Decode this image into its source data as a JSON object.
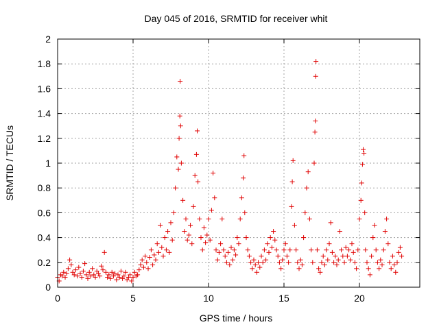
{
  "chart_data": {
    "type": "scatter",
    "title": "Day 045 of 2016, SRMTID for receiver whit",
    "xlabel": "GPS time / hours",
    "ylabel": "SRMTID / TECUs",
    "xlim": [
      0,
      24
    ],
    "ylim": [
      0,
      2
    ],
    "xticks": [
      0,
      5,
      10,
      15,
      20
    ],
    "xtick_labels": [
      "0",
      "5",
      "10",
      "15",
      "20"
    ],
    "yticks": [
      0,
      0.2,
      0.4,
      0.6,
      0.8,
      1,
      1.2,
      1.4,
      1.6,
      1.8,
      2
    ],
    "ytick_labels": [
      "0",
      "0.2",
      "0.4",
      "0.6",
      "0.8",
      "1",
      "1.2",
      "1.4",
      "1.6",
      "1.8",
      "2"
    ],
    "grid": true,
    "marker": "+",
    "color": "#e00000",
    "series": [
      {
        "name": "whit",
        "points": [
          [
            0.0,
            0.08
          ],
          [
            0.1,
            0.05
          ],
          [
            0.2,
            0.1
          ],
          [
            0.3,
            0.09
          ],
          [
            0.4,
            0.12
          ],
          [
            0.5,
            0.08
          ],
          [
            0.6,
            0.11
          ],
          [
            0.7,
            0.15
          ],
          [
            0.8,
            0.22
          ],
          [
            0.9,
            0.18
          ],
          [
            1.0,
            0.12
          ],
          [
            1.1,
            0.1
          ],
          [
            1.2,
            0.14
          ],
          [
            1.3,
            0.09
          ],
          [
            1.4,
            0.16
          ],
          [
            1.5,
            0.11
          ],
          [
            1.6,
            0.08
          ],
          [
            1.7,
            0.13
          ],
          [
            1.8,
            0.19
          ],
          [
            1.9,
            0.1
          ],
          [
            2.0,
            0.07
          ],
          [
            2.1,
            0.12
          ],
          [
            2.2,
            0.09
          ],
          [
            2.3,
            0.15
          ],
          [
            2.4,
            0.1
          ],
          [
            2.5,
            0.08
          ],
          [
            2.6,
            0.13
          ],
          [
            2.7,
            0.11
          ],
          [
            2.8,
            0.09
          ],
          [
            2.9,
            0.17
          ],
          [
            3.0,
            0.14
          ],
          [
            3.1,
            0.28
          ],
          [
            3.2,
            0.12
          ],
          [
            3.3,
            0.08
          ],
          [
            3.4,
            0.1
          ],
          [
            3.5,
            0.07
          ],
          [
            3.6,
            0.12
          ],
          [
            3.7,
            0.09
          ],
          [
            3.8,
            0.11
          ],
          [
            3.9,
            0.06
          ],
          [
            4.0,
            0.1
          ],
          [
            4.1,
            0.08
          ],
          [
            4.2,
            0.13
          ],
          [
            4.3,
            0.07
          ],
          [
            4.4,
            0.09
          ],
          [
            4.5,
            0.12
          ],
          [
            4.6,
            0.06
          ],
          [
            4.7,
            0.08
          ],
          [
            4.8,
            0.1
          ],
          [
            4.9,
            0.05
          ],
          [
            5.0,
            0.08
          ],
          [
            5.1,
            0.12
          ],
          [
            5.2,
            0.09
          ],
          [
            5.3,
            0.1
          ],
          [
            5.4,
            0.14
          ],
          [
            5.5,
            0.18
          ],
          [
            5.6,
            0.22
          ],
          [
            5.7,
            0.16
          ],
          [
            5.8,
            0.25
          ],
          [
            5.9,
            0.2
          ],
          [
            6.0,
            0.15
          ],
          [
            6.1,
            0.24
          ],
          [
            6.2,
            0.3
          ],
          [
            6.3,
            0.18
          ],
          [
            6.4,
            0.26
          ],
          [
            6.5,
            0.22
          ],
          [
            6.6,
            0.35
          ],
          [
            6.7,
            0.28
          ],
          [
            6.8,
            0.5
          ],
          [
            6.9,
            0.32
          ],
          [
            7.0,
            0.25
          ],
          [
            7.1,
            0.4
          ],
          [
            7.2,
            0.3
          ],
          [
            7.3,
            0.45
          ],
          [
            7.4,
            0.28
          ],
          [
            7.5,
            0.52
          ],
          [
            7.6,
            0.38
          ],
          [
            7.7,
            0.6
          ],
          [
            7.8,
            0.8
          ],
          [
            7.9,
            1.05
          ],
          [
            8.0,
            0.95
          ],
          [
            8.05,
            1.2
          ],
          [
            8.1,
            1.38
          ],
          [
            8.12,
            1.66
          ],
          [
            8.15,
            1.3
          ],
          [
            8.2,
            1.0
          ],
          [
            8.3,
            0.7
          ],
          [
            8.4,
            0.45
          ],
          [
            8.5,
            0.55
          ],
          [
            8.6,
            0.38
          ],
          [
            8.7,
            0.42
          ],
          [
            8.8,
            0.5
          ],
          [
            8.9,
            0.35
          ],
          [
            9.0,
            0.65
          ],
          [
            9.1,
            0.9
          ],
          [
            9.2,
            1.07
          ],
          [
            9.25,
            1.26
          ],
          [
            9.3,
            0.85
          ],
          [
            9.4,
            0.55
          ],
          [
            9.5,
            0.4
          ],
          [
            9.6,
            0.3
          ],
          [
            9.7,
            0.48
          ],
          [
            9.8,
            0.36
          ],
          [
            9.9,
            0.42
          ],
          [
            10.0,
            0.55
          ],
          [
            10.1,
            0.38
          ],
          [
            10.2,
            0.62
          ],
          [
            10.3,
            0.92
          ],
          [
            10.4,
            0.72
          ],
          [
            10.5,
            0.3
          ],
          [
            10.6,
            0.22
          ],
          [
            10.7,
            0.28
          ],
          [
            10.8,
            0.35
          ],
          [
            10.9,
            0.55
          ],
          [
            11.0,
            0.3
          ],
          [
            11.1,
            0.25
          ],
          [
            11.2,
            0.2
          ],
          [
            11.3,
            0.28
          ],
          [
            11.4,
            0.18
          ],
          [
            11.5,
            0.32
          ],
          [
            11.6,
            0.22
          ],
          [
            11.7,
            0.3
          ],
          [
            11.8,
            0.26
          ],
          [
            11.9,
            0.4
          ],
          [
            12.0,
            0.35
          ],
          [
            12.1,
            0.55
          ],
          [
            12.2,
            0.72
          ],
          [
            12.3,
            0.88
          ],
          [
            12.35,
            1.06
          ],
          [
            12.4,
            0.6
          ],
          [
            12.5,
            0.4
          ],
          [
            12.6,
            0.3
          ],
          [
            12.7,
            0.25
          ],
          [
            12.8,
            0.2
          ],
          [
            12.9,
            0.15
          ],
          [
            13.0,
            0.22
          ],
          [
            13.1,
            0.18
          ],
          [
            13.2,
            0.12
          ],
          [
            13.3,
            0.2
          ],
          [
            13.4,
            0.16
          ],
          [
            13.5,
            0.25
          ],
          [
            13.6,
            0.2
          ],
          [
            13.7,
            0.3
          ],
          [
            13.8,
            0.22
          ],
          [
            13.9,
            0.35
          ],
          [
            14.0,
            0.28
          ],
          [
            14.1,
            0.4
          ],
          [
            14.2,
            0.32
          ],
          [
            14.3,
            0.45
          ],
          [
            14.4,
            0.38
          ],
          [
            14.5,
            0.3
          ],
          [
            14.6,
            0.25
          ],
          [
            14.7,
            0.2
          ],
          [
            14.8,
            0.15
          ],
          [
            14.9,
            0.22
          ],
          [
            15.0,
            0.3
          ],
          [
            15.1,
            0.35
          ],
          [
            15.2,
            0.25
          ],
          [
            15.3,
            0.2
          ],
          [
            15.4,
            0.3
          ],
          [
            15.5,
            0.65
          ],
          [
            15.55,
            0.85
          ],
          [
            15.6,
            1.02
          ],
          [
            15.7,
            0.5
          ],
          [
            15.8,
            0.3
          ],
          [
            15.9,
            0.2
          ],
          [
            16.0,
            0.15
          ],
          [
            16.1,
            0.22
          ],
          [
            16.2,
            0.18
          ],
          [
            16.3,
            0.4
          ],
          [
            16.4,
            0.6
          ],
          [
            16.5,
            0.8
          ],
          [
            16.6,
            0.93
          ],
          [
            16.7,
            0.55
          ],
          [
            16.8,
            0.3
          ],
          [
            16.9,
            0.2
          ],
          [
            17.0,
            1.0
          ],
          [
            17.05,
            1.25
          ],
          [
            17.08,
            1.34
          ],
          [
            17.1,
            1.7
          ],
          [
            17.12,
            1.82
          ],
          [
            17.2,
            0.3
          ],
          [
            17.3,
            0.15
          ],
          [
            17.4,
            0.12
          ],
          [
            17.5,
            0.2
          ],
          [
            17.6,
            0.25
          ],
          [
            17.7,
            0.18
          ],
          [
            17.8,
            0.3
          ],
          [
            17.9,
            0.22
          ],
          [
            18.0,
            0.35
          ],
          [
            18.1,
            0.52
          ],
          [
            18.2,
            0.28
          ],
          [
            18.3,
            0.2
          ],
          [
            18.4,
            0.25
          ],
          [
            18.5,
            0.18
          ],
          [
            18.6,
            0.22
          ],
          [
            18.7,
            0.45
          ],
          [
            18.8,
            0.3
          ],
          [
            18.9,
            0.25
          ],
          [
            19.0,
            0.2
          ],
          [
            19.1,
            0.32
          ],
          [
            19.2,
            0.25
          ],
          [
            19.3,
            0.3
          ],
          [
            19.4,
            0.22
          ],
          [
            19.5,
            0.35
          ],
          [
            19.6,
            0.28
          ],
          [
            19.7,
            0.2
          ],
          [
            19.8,
            0.15
          ],
          [
            19.9,
            0.3
          ],
          [
            20.0,
            0.55
          ],
          [
            20.1,
            0.7
          ],
          [
            20.15,
            0.84
          ],
          [
            20.2,
            0.99
          ],
          [
            20.25,
            1.11
          ],
          [
            20.3,
            1.08
          ],
          [
            20.35,
            0.6
          ],
          [
            20.4,
            0.3
          ],
          [
            20.5,
            0.2
          ],
          [
            20.6,
            0.15
          ],
          [
            20.7,
            0.1
          ],
          [
            20.8,
            0.25
          ],
          [
            20.9,
            0.4
          ],
          [
            21.0,
            0.5
          ],
          [
            21.1,
            0.3
          ],
          [
            21.2,
            0.2
          ],
          [
            21.3,
            0.15
          ],
          [
            21.4,
            0.22
          ],
          [
            21.5,
            0.18
          ],
          [
            21.6,
            0.3
          ],
          [
            21.7,
            0.45
          ],
          [
            21.8,
            0.55
          ],
          [
            21.9,
            0.35
          ],
          [
            22.0,
            0.2
          ],
          [
            22.1,
            0.15
          ],
          [
            22.2,
            0.25
          ],
          [
            22.3,
            0.18
          ],
          [
            22.4,
            0.12
          ],
          [
            22.5,
            0.2
          ],
          [
            22.6,
            0.28
          ],
          [
            22.7,
            0.32
          ],
          [
            22.8,
            0.25
          ]
        ]
      }
    ]
  }
}
